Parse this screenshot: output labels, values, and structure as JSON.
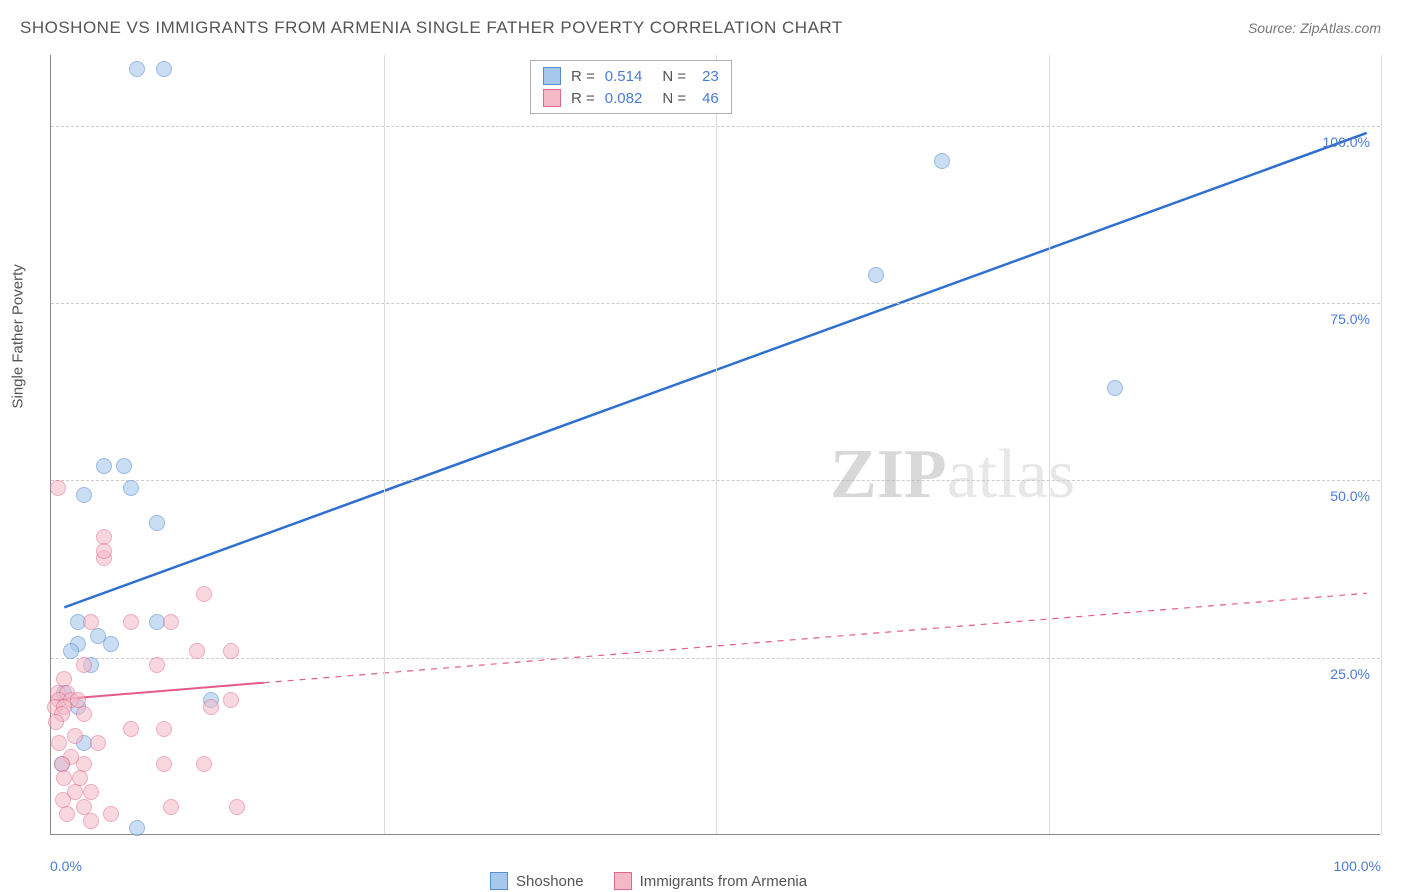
{
  "title": "SHOSHONE VS IMMIGRANTS FROM ARMENIA SINGLE FATHER POVERTY CORRELATION CHART",
  "source": "Source: ZipAtlas.com",
  "y_axis_label": "Single Father Poverty",
  "watermark": {
    "zip": "ZIP",
    "atlas": "atlas"
  },
  "chart": {
    "type": "scatter",
    "xlim": [
      0,
      100
    ],
    "ylim": [
      0,
      110
    ],
    "background_color": "#ffffff",
    "grid_color": "#cccccc",
    "axis_color": "#888888",
    "y_ticks": [
      25,
      50,
      75,
      100
    ],
    "y_tick_labels": [
      "25.0%",
      "50.0%",
      "75.0%",
      "100.0%"
    ],
    "x_grid_positions": [
      25,
      50,
      75,
      100
    ],
    "x_min_label": "0.0%",
    "x_max_label": "100.0%",
    "series": [
      {
        "name": "Shoshone",
        "fill_color": "#a6c8ec",
        "stroke_color": "#5a8dd0",
        "fill_opacity": 0.6,
        "R": "0.514",
        "N": "23",
        "trend": {
          "x1": 1,
          "y1": 32,
          "x2": 99,
          "y2": 99,
          "solid_until": 99,
          "line_color": "#2f6fd0",
          "line_width": 2.5
        },
        "points": [
          {
            "x": 6.5,
            "y": 108
          },
          {
            "x": 8.5,
            "y": 108
          },
          {
            "x": 67,
            "y": 95
          },
          {
            "x": 62,
            "y": 79
          },
          {
            "x": 80,
            "y": 63
          },
          {
            "x": 4,
            "y": 52
          },
          {
            "x": 5.5,
            "y": 52
          },
          {
            "x": 6,
            "y": 49
          },
          {
            "x": 2.5,
            "y": 48
          },
          {
            "x": 8,
            "y": 44
          },
          {
            "x": 8,
            "y": 30
          },
          {
            "x": 2,
            "y": 30
          },
          {
            "x": 3.5,
            "y": 28
          },
          {
            "x": 4.5,
            "y": 27
          },
          {
            "x": 2,
            "y": 27
          },
          {
            "x": 1.5,
            "y": 26
          },
          {
            "x": 1,
            "y": 20
          },
          {
            "x": 2,
            "y": 18
          },
          {
            "x": 12,
            "y": 19
          },
          {
            "x": 2.5,
            "y": 13
          },
          {
            "x": 0.8,
            "y": 10
          },
          {
            "x": 6.5,
            "y": 1
          },
          {
            "x": 3,
            "y": 24
          }
        ]
      },
      {
        "name": "Immigrants from Armenia",
        "fill_color": "#f4b8c6",
        "stroke_color": "#e06a8c",
        "fill_opacity": 0.55,
        "R": "0.082",
        "N": "46",
        "trend": {
          "x1": 0.5,
          "y1": 19,
          "x2": 99,
          "y2": 34,
          "solid_until": 16,
          "line_color": "#e45a89",
          "line_width": 2
        },
        "points": [
          {
            "x": 0.5,
            "y": 49
          },
          {
            "x": 4,
            "y": 42
          },
          {
            "x": 4,
            "y": 39
          },
          {
            "x": 4,
            "y": 40
          },
          {
            "x": 11.5,
            "y": 34
          },
          {
            "x": 6,
            "y": 30
          },
          {
            "x": 9,
            "y": 30
          },
          {
            "x": 3,
            "y": 30
          },
          {
            "x": 11,
            "y": 26
          },
          {
            "x": 13.5,
            "y": 26
          },
          {
            "x": 8,
            "y": 24
          },
          {
            "x": 2.5,
            "y": 24
          },
          {
            "x": 1,
            "y": 22
          },
          {
            "x": 0.5,
            "y": 20
          },
          {
            "x": 1.2,
            "y": 20
          },
          {
            "x": 0.6,
            "y": 19
          },
          {
            "x": 1.5,
            "y": 19
          },
          {
            "x": 0.3,
            "y": 18
          },
          {
            "x": 1,
            "y": 18
          },
          {
            "x": 2,
            "y": 19
          },
          {
            "x": 0.8,
            "y": 17
          },
          {
            "x": 2.5,
            "y": 17
          },
          {
            "x": 0.4,
            "y": 16
          },
          {
            "x": 12,
            "y": 18
          },
          {
            "x": 13.5,
            "y": 19
          },
          {
            "x": 6,
            "y": 15
          },
          {
            "x": 8.5,
            "y": 15
          },
          {
            "x": 1.8,
            "y": 14
          },
          {
            "x": 0.6,
            "y": 13
          },
          {
            "x": 3.5,
            "y": 13
          },
          {
            "x": 1.5,
            "y": 11
          },
          {
            "x": 0.8,
            "y": 10
          },
          {
            "x": 2.5,
            "y": 10
          },
          {
            "x": 8.5,
            "y": 10
          },
          {
            "x": 11.5,
            "y": 10
          },
          {
            "x": 1,
            "y": 8
          },
          {
            "x": 2.2,
            "y": 8
          },
          {
            "x": 1.8,
            "y": 6
          },
          {
            "x": 3,
            "y": 6
          },
          {
            "x": 0.9,
            "y": 5
          },
          {
            "x": 2.5,
            "y": 4
          },
          {
            "x": 4.5,
            "y": 3
          },
          {
            "x": 9,
            "y": 4
          },
          {
            "x": 14,
            "y": 4
          },
          {
            "x": 3,
            "y": 2
          },
          {
            "x": 1.2,
            "y": 3
          }
        ]
      }
    ]
  },
  "legend": {
    "series1": "Shoshone",
    "series2": "Immigrants from Armenia"
  }
}
